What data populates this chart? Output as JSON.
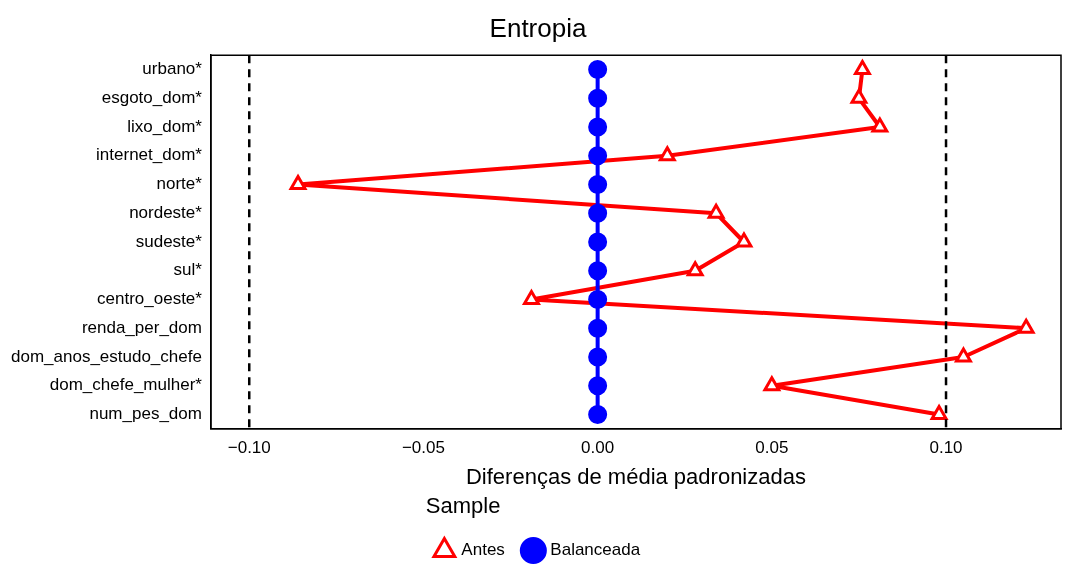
{
  "chart_data": {
    "type": "line",
    "orientation": "horizontal",
    "title": "Entropia",
    "xlabel": "Diferenças de média padronizadas",
    "legend_title": "Sample",
    "legend": "bottom",
    "grid": false,
    "categories": [
      "urbano*",
      "esgoto_dom*",
      "lixo_dom*",
      "internet_dom*",
      "norte*",
      "nordeste*",
      "sudeste*",
      "sul*",
      "centro_oeste*",
      "renda_per_dom",
      "dom_anos_estudo_chefe",
      "dom_chefe_mulher*",
      "num_pes_dom"
    ],
    "series": [
      {
        "name": "Antes",
        "color": "#ff0000",
        "marker": "triangle",
        "values": [
          0.076,
          0.075,
          0.081,
          0.02,
          -0.086,
          0.034,
          0.042,
          0.028,
          -0.019,
          0.123,
          0.105,
          0.05,
          0.098
        ]
      },
      {
        "name": "Balanceada",
        "color": "#0000ff",
        "marker": "circle",
        "values": [
          0,
          0,
          0,
          0,
          0,
          0,
          0,
          0,
          0,
          0,
          0,
          0,
          0
        ]
      }
    ],
    "xlim": [
      -0.111,
      0.133
    ],
    "xticks": [
      {
        "value": -0.1,
        "label": "−0.10"
      },
      {
        "value": -0.05,
        "label": "−0.05"
      },
      {
        "value": 0,
        "label": "0.00"
      },
      {
        "value": 0.05,
        "label": "0.05"
      },
      {
        "value": 0.1,
        "label": "0.10"
      }
    ],
    "ref_lines": [
      {
        "axis": "x",
        "value": -0.1,
        "line_style": "dashed",
        "color": "#000000"
      },
      {
        "axis": "x",
        "value": 0.1,
        "line_style": "dashed",
        "color": "#000000"
      }
    ]
  }
}
